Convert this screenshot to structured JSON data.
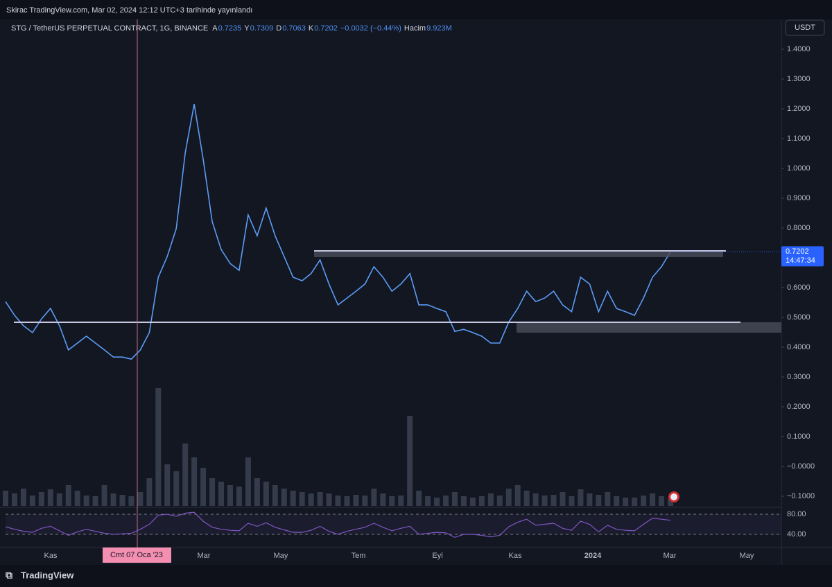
{
  "header": {
    "published": "Skirac TradingView.com, Mar 02, 2024 12:12 UTC+3 tarihinde yayınlandı",
    "symbol": "STG / TetherUS PERPETUAL CONTRACT, 1G, BINANCE",
    "ohlc": [
      {
        "label": "A",
        "value": "0.7235"
      },
      {
        "label": "Y",
        "value": "0.7309"
      },
      {
        "label": "D",
        "value": "0.7063"
      },
      {
        "label": "K",
        "value": "0.7202"
      }
    ],
    "change": "−0.0032 (−0.44%)",
    "volume_label": "Hacim",
    "volume_value": "9.923M"
  },
  "currency": "USDT",
  "chart_data": {
    "type": "line",
    "color": "#5b9cf6",
    "values": [
      0.553,
      0.507,
      0.472,
      0.449,
      0.495,
      0.53,
      0.472,
      0.391,
      0.414,
      0.437,
      0.414,
      0.391,
      0.367,
      0.367,
      0.36,
      0.391,
      0.449,
      0.635,
      0.705,
      0.798,
      1.053,
      1.216,
      1.03,
      0.821,
      0.728,
      0.681,
      0.658,
      0.844,
      0.774,
      0.867,
      0.774,
      0.705,
      0.635,
      0.623,
      0.647,
      0.693,
      0.612,
      0.542,
      0.565,
      0.588,
      0.612,
      0.67,
      0.635,
      0.588,
      0.612,
      0.647,
      0.542,
      0.542,
      0.53,
      0.519,
      0.453,
      0.46,
      0.449,
      0.437,
      0.414,
      0.414,
      0.484,
      0.53,
      0.588,
      0.553,
      0.565,
      0.588,
      0.542,
      0.519,
      0.635,
      0.612,
      0.519,
      0.588,
      0.53,
      0.519,
      0.507,
      0.565,
      0.635,
      0.67,
      0.7202
    ],
    "ylim": [
      -0.1372,
      1.5186
    ],
    "yticks": [
      {
        "value": 1.4,
        "label": "1.4000"
      },
      {
        "value": 1.3,
        "label": "1.3000"
      },
      {
        "value": 1.2,
        "label": "1.2000"
      },
      {
        "value": 1.1,
        "label": "1.1000"
      },
      {
        "value": 1.0,
        "label": "1.0000"
      },
      {
        "value": 0.9,
        "label": "0.9000"
      },
      {
        "value": 0.8,
        "label": "0.8000"
      },
      {
        "value": 0.6,
        "label": "0.6000"
      },
      {
        "value": 0.5,
        "label": "0.5000"
      },
      {
        "value": 0.4,
        "label": "0.4000"
      },
      {
        "value": 0.3,
        "label": "0.3000"
      },
      {
        "value": 0.2,
        "label": "0.2000"
      },
      {
        "value": 0.1,
        "label": "0.1000"
      },
      {
        "value": 0,
        "label": "−0.0000"
      },
      {
        "value": -0.1,
        "label": "−0.1000"
      }
    ],
    "last_price": 0.7202,
    "countdown": "14:47:34",
    "volume": {
      "color": "#3b4252",
      "values": [
        22,
        18,
        25,
        15,
        20,
        24,
        18,
        30,
        22,
        15,
        14,
        30,
        18,
        16,
        14,
        20,
        40,
        170,
        60,
        50,
        90,
        70,
        55,
        40,
        35,
        30,
        28,
        70,
        40,
        35,
        30,
        25,
        22,
        20,
        18,
        20,
        18,
        15,
        14,
        16,
        15,
        25,
        18,
        14,
        15,
        130,
        22,
        14,
        12,
        15,
        20,
        14,
        12,
        14,
        18,
        15,
        25,
        30,
        22,
        18,
        15,
        16,
        20,
        14,
        24,
        18,
        16,
        20,
        14,
        12,
        12,
        15,
        18,
        14,
        9.923
      ]
    },
    "rsi": {
      "color": "#7e57c2",
      "ylim": [
        13.8,
        92.4
      ],
      "yticks": [
        {
          "value": 80,
          "label": "80.00"
        },
        {
          "value": 40,
          "label": "40.00"
        }
      ],
      "values": [
        55,
        50,
        46,
        44,
        52,
        56,
        47,
        38,
        45,
        50,
        46,
        42,
        40,
        41,
        42,
        50,
        60,
        78,
        80,
        76,
        82,
        84,
        66,
        54,
        50,
        48,
        47,
        62,
        56,
        63,
        54,
        49,
        44,
        44,
        48,
        56,
        46,
        40,
        46,
        50,
        54,
        62,
        54,
        47,
        52,
        56,
        40,
        42,
        44,
        43,
        34,
        40,
        40,
        38,
        35,
        38,
        55,
        64,
        70,
        58,
        60,
        62,
        52,
        48,
        66,
        60,
        45,
        58,
        50,
        48,
        47,
        60,
        72,
        70,
        68
      ]
    },
    "x_labels": [
      "Kas",
      "Mar",
      "May",
      "Tem",
      "Eyl",
      "Kas",
      "2024",
      "Mar",
      "May"
    ],
    "crosshair_label": "Cmt 07 Oca '23"
  },
  "footer": "TradingView"
}
